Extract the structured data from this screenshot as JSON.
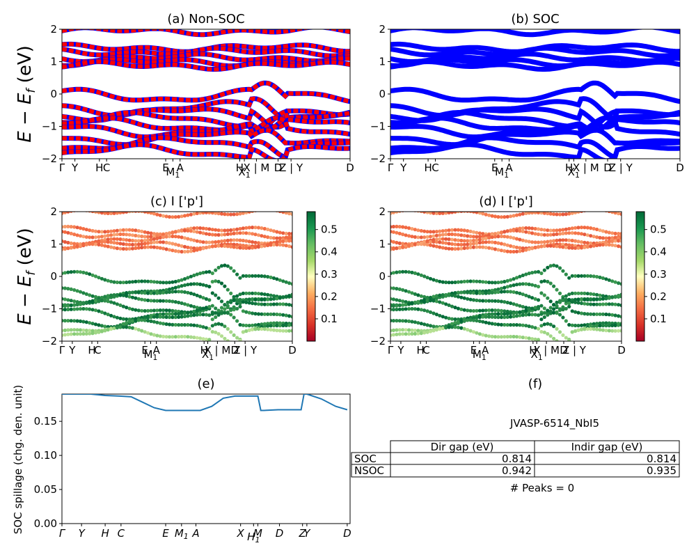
{
  "colors": {
    "nonsoc_a": "#0000ff",
    "nonsoc_b": "#ff0000",
    "soc": "#0000ff",
    "spill": "#1f77b4",
    "colormap": "RdYlGn"
  },
  "panels": {
    "a": {
      "title": "(a) Non-SOC"
    },
    "b": {
      "title": "(b) SOC"
    },
    "c": {
      "title": "(c)  I ['p']"
    },
    "d": {
      "title": "(d) I ['p']"
    },
    "e": {
      "title": "(e)"
    },
    "f": {
      "title": "(f)"
    }
  },
  "band_ylabel": "E − E_f (eV)",
  "band_ylabel_parts": {
    "main": "E − E",
    "sub": "f",
    "unit": " (eV)"
  },
  "band_ylim": [
    -2,
    2
  ],
  "band_yticks": [
    "−2",
    "−1",
    "0",
    "1",
    "2"
  ],
  "kpath_labels": [
    {
      "text": "Γ",
      "x": 0.0
    },
    {
      "text": "Y",
      "x": 0.045
    },
    {
      "text": "H",
      "x": 0.13
    },
    {
      "text": "C",
      "x": 0.155
    },
    {
      "text": "E",
      "x": 0.36
    },
    {
      "text": "M",
      "sub": "1",
      "x": 0.385,
      "low": true
    },
    {
      "text": "A",
      "x": 0.41
    },
    {
      "text": "H",
      "x": 0.617
    },
    {
      "text": "X",
      "sub": "1",
      "x": 0.633,
      "low": true
    },
    {
      "text": "X | M",
      "x": 0.675
    },
    {
      "text": "D",
      "x": 0.75
    },
    {
      "text": "Z | Y",
      "x": 0.795
    },
    {
      "text": "D",
      "x": 1.0
    }
  ],
  "colorbar": {
    "ticks": [
      "0.1",
      "0.2",
      "0.3",
      "0.4",
      "0.5"
    ],
    "range": [
      0.0,
      0.58
    ]
  },
  "chart_data": {
    "type": "line",
    "title": "(e)",
    "ylabel": "SOC spillage (chg. den. unit)",
    "ylim": [
      0,
      0.19
    ],
    "yticks": [
      "0.00",
      "0.05",
      "0.10",
      "0.15"
    ],
    "xtick_labels": [
      "Γ",
      "Y",
      "H",
      "C",
      "E",
      "M1",
      "A",
      "X",
      "H1",
      "M",
      "D",
      "Z",
      "Y",
      "D"
    ],
    "xtick_positions": [
      0.0,
      0.068,
      0.15,
      0.205,
      0.36,
      0.415,
      0.465,
      0.62,
      0.665,
      0.68,
      0.755,
      0.835,
      0.85,
      0.99
    ],
    "x": [
      0.0,
      0.1,
      0.15,
      0.2,
      0.24,
      0.28,
      0.32,
      0.36,
      0.42,
      0.48,
      0.52,
      0.56,
      0.6,
      0.68,
      0.69,
      0.7,
      0.75,
      0.83,
      0.84,
      0.85,
      0.9,
      0.95,
      0.99
    ],
    "y": [
      0.19,
      0.19,
      0.188,
      0.187,
      0.186,
      0.178,
      0.17,
      0.166,
      0.166,
      0.166,
      0.172,
      0.184,
      0.187,
      0.187,
      0.166,
      0.166,
      0.167,
      0.167,
      0.19,
      0.19,
      0.183,
      0.172,
      0.167
    ]
  },
  "table": {
    "title": "JVASP-6514_NbI5",
    "headers": [
      "",
      "Dir gap (eV)",
      "Indir gap (eV)"
    ],
    "rows": [
      {
        "label": "SOC",
        "dir": "0.814",
        "indir": "0.814"
      },
      {
        "label": "NSOC",
        "dir": "0.942",
        "indir": "0.935"
      }
    ],
    "peaks": "# Peaks = 0"
  }
}
